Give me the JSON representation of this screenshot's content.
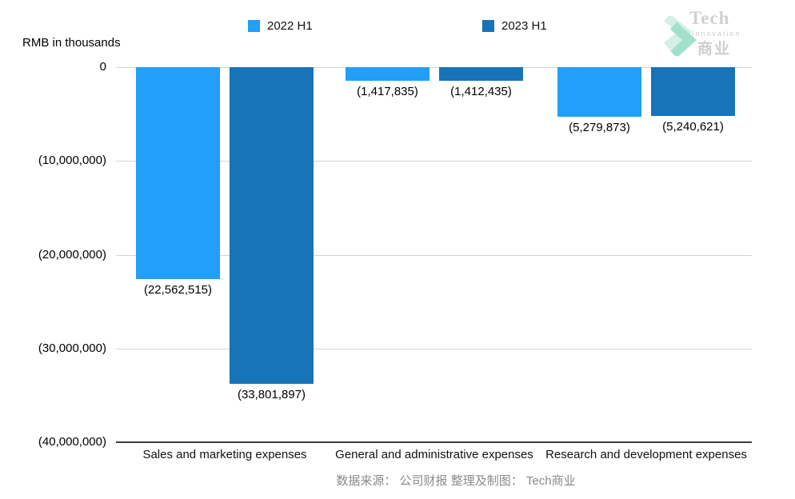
{
  "header": {
    "y_axis_unit_label": "RMB in thousands",
    "legend": [
      {
        "label": "2022 H1",
        "color": "#219FF9"
      },
      {
        "label": "2023 H1",
        "color": "#1774B9"
      }
    ]
  },
  "logo": {
    "icon": "double-chevron-right-icon",
    "line1": "Tech",
    "line2": "Innovation",
    "line3": "商业",
    "chevron_color_back": "#cdeee1",
    "chevron_color_front": "#93dac5"
  },
  "footer": {
    "source_text": "数据来源： 公司财报 整理及制图： Tech商业"
  },
  "chart_data": {
    "type": "bar",
    "orientation": "vertical",
    "title": "",
    "unit_label": "RMB in thousands",
    "grid": true,
    "legend_position": "top",
    "ylim": [
      -40000000,
      0
    ],
    "categories": [
      "Sales and marketing expenses",
      "General and administrative expenses",
      "Research and development expenses"
    ],
    "series": [
      {
        "name": "2022 H1",
        "color": "#219FF9",
        "values": [
          -22562515,
          -1417835,
          -5279873
        ],
        "labels": [
          "(22,562,515)",
          "(1,417,835)",
          "(5,279,873)"
        ]
      },
      {
        "name": "2023 H1",
        "color": "#1774B9",
        "values": [
          -33801897,
          -1412435,
          -5240621
        ],
        "labels": [
          "(33,801,897)",
          "(1,412,435)",
          "(5,240,621)"
        ]
      }
    ],
    "y_ticks": [
      {
        "label": "0",
        "value": 0
      },
      {
        "label": "(10,000,000)",
        "value": -10000000
      },
      {
        "label": "(20,000,000)",
        "value": -20000000
      },
      {
        "label": "(30,000,000)",
        "value": -30000000
      },
      {
        "label": "(40,000,000)",
        "value": -40000000
      }
    ]
  }
}
